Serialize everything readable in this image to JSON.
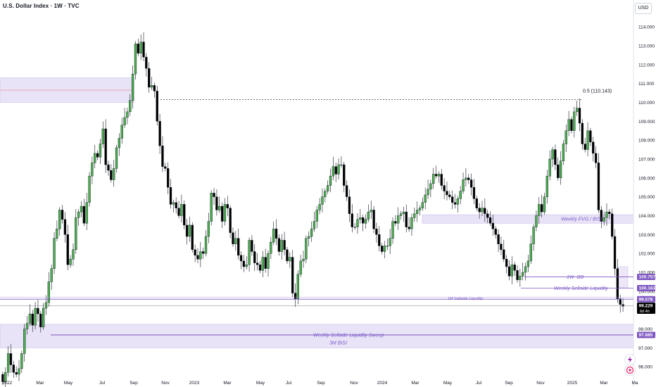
{
  "header": {
    "title": "U.S. Dollar Index · 1W · TVC",
    "currency": "USD"
  },
  "chart_data": {
    "type": "candlestick",
    "y_ticks": [
      96,
      97,
      98,
      99,
      100,
      101,
      102,
      103,
      104,
      105,
      106,
      107,
      108,
      109,
      110,
      111,
      112,
      113,
      114
    ],
    "y_tick_labels": [
      "96.000",
      "97.000",
      "98.000",
      "99.000",
      "100.000",
      "101.000",
      "102.000",
      "103.000",
      "104.000",
      "105.000",
      "106.000",
      "107.000",
      "108.000",
      "109.000",
      "110.000",
      "111.000",
      "112.000",
      "113.000",
      "114.000"
    ],
    "x_tick_labels": [
      "2022",
      "Mar",
      "May",
      "Jul",
      "Sep",
      "Nov",
      "2023",
      "Mar",
      "May",
      "Jul",
      "Sep",
      "Nov",
      "2024",
      "Mar",
      "May",
      "Jul",
      "Sep",
      "Nov",
      "2025",
      "Mar",
      "Ma"
    ],
    "up_color": "#4caf50",
    "down_color": "#000000",
    "closes": [
      95.2,
      95.7,
      96.7,
      96.1,
      95.7,
      95.6,
      95.9,
      96.7,
      98.0,
      98.3,
      98.8,
      98.2,
      99.1,
      98.8,
      98.1,
      99.1,
      99.4,
      100.5,
      101.2,
      102.8,
      103.3,
      104.3,
      103.8,
      103.0,
      101.4,
      101.7,
      102.2,
      103.9,
      104.2,
      104.5,
      103.6,
      104.7,
      106.1,
      106.8,
      107.3,
      107.1,
      107.8,
      108.6,
      106.7,
      106.4,
      105.9,
      106.5,
      107.6,
      108.1,
      108.8,
      109.2,
      109.5,
      110.1,
      111.5,
      113.1,
      112.6,
      113.2,
      112.4,
      111.8,
      110.8,
      110.9,
      110.6,
      109.0,
      107.7,
      106.6,
      106.5,
      105.5,
      104.6,
      104.7,
      104.4,
      104.0,
      104.6,
      103.5,
      102.9,
      103.5,
      102.2,
      101.9,
      101.7,
      102.1,
      102.0,
      102.9,
      103.7,
      105.2,
      105.0,
      104.3,
      104.5,
      103.7,
      104.6,
      104.4,
      103.1,
      102.5,
      102.8,
      101.9,
      101.6,
      101.3,
      101.4,
      102.7,
      102.1,
      101.5,
      101.4,
      101.1,
      101.8,
      101.2,
      102.0,
      102.6,
      103.3,
      102.8,
      102.1,
      102.7,
      102.2,
      101.6,
      101.8,
      99.9,
      99.6,
      100.9,
      101.6,
      101.7,
      102.8,
      102.9,
      103.3,
      103.7,
      104.3,
      104.6,
      105.0,
      105.3,
      105.6,
      106.1,
      106.6,
      106.2,
      106.7,
      106.7,
      105.6,
      105.0,
      104.1,
      103.4,
      103.4,
      103.8,
      103.9,
      103.6,
      103.8,
      104.2,
      104.3,
      103.3,
      103.0,
      102.4,
      102.1,
      102.4,
      102.4,
      102.8,
      103.7,
      103.6,
      104.0,
      104.1,
      104.2,
      103.4,
      103.3,
      103.9,
      104.1,
      104.3,
      104.4,
      104.7,
      105.1,
      105.4,
      105.7,
      106.2,
      106.1,
      106.2,
      105.6,
      105.3,
      105.1,
      105.0,
      104.7,
      104.6,
      104.9,
      105.3,
      105.9,
      106.0,
      105.9,
      105.5,
      104.9,
      104.4,
      104.2,
      104.4,
      104.1,
      103.9,
      103.6,
      103.3,
      103.0,
      102.5,
      102.2,
      101.7,
      101.3,
      100.8,
      101.4,
      101.1,
      100.6,
      100.8,
      101.0,
      101.3,
      101.6,
      102.5,
      103.4,
      104.0,
      104.6,
      104.2,
      105.0,
      106.1,
      107.0,
      107.5,
      106.7,
      106.0,
      106.9,
      107.8,
      108.5,
      109.1,
      108.5,
      109.5,
      109.7,
      108.9,
      107.8,
      107.5,
      108.5,
      107.9,
      107.3,
      106.8,
      104.3,
      103.7,
      103.9,
      104.2,
      104.1,
      102.9,
      101.2,
      99.6,
      99.3,
      99.2
    ],
    "annotations": {
      "fib_label": "0.5 (110.143)",
      "fib_level": 110.143,
      "weekly_fvg_label": "Weekly FVG / BISI",
      "weekly_fvg_top": 104.05,
      "weekly_fvg_bottom": 103.6,
      "one_w_bb_label": "1W -BB",
      "one_w_bb_level": 100.757,
      "weekly_ssl_label": "Weekly Sellside Liquidity",
      "weekly_ssl_level": 100.163,
      "one_m_ssl_label": "1M Sellside Liquidity",
      "one_m_ssl_level": 99.578,
      "weekly_sweep_label": "Weekly Sellside Liquidity Sweep",
      "weekly_sweep_level": 97.685,
      "three_m_bisi_label": "3M BISI",
      "three_m_bisi_top": 98.25,
      "three_m_bisi_bottom": 97.0,
      "top_left_zone_top": 111.3,
      "top_left_zone_bottom": 110.0
    },
    "price_tags": [
      {
        "value": "100.757",
        "color": "#7e57c2"
      },
      {
        "value": "100.163",
        "color": "#7e57c2"
      },
      {
        "value": "99.578",
        "color": "#7e57c2"
      },
      {
        "value": "99.229",
        "color": "#000000"
      },
      {
        "value": "97.685",
        "color": "#7e57c2"
      }
    ],
    "countdown": "6d 4h",
    "current_price": 99.229,
    "y_axis_range": [
      95.3,
      114.9
    ]
  }
}
